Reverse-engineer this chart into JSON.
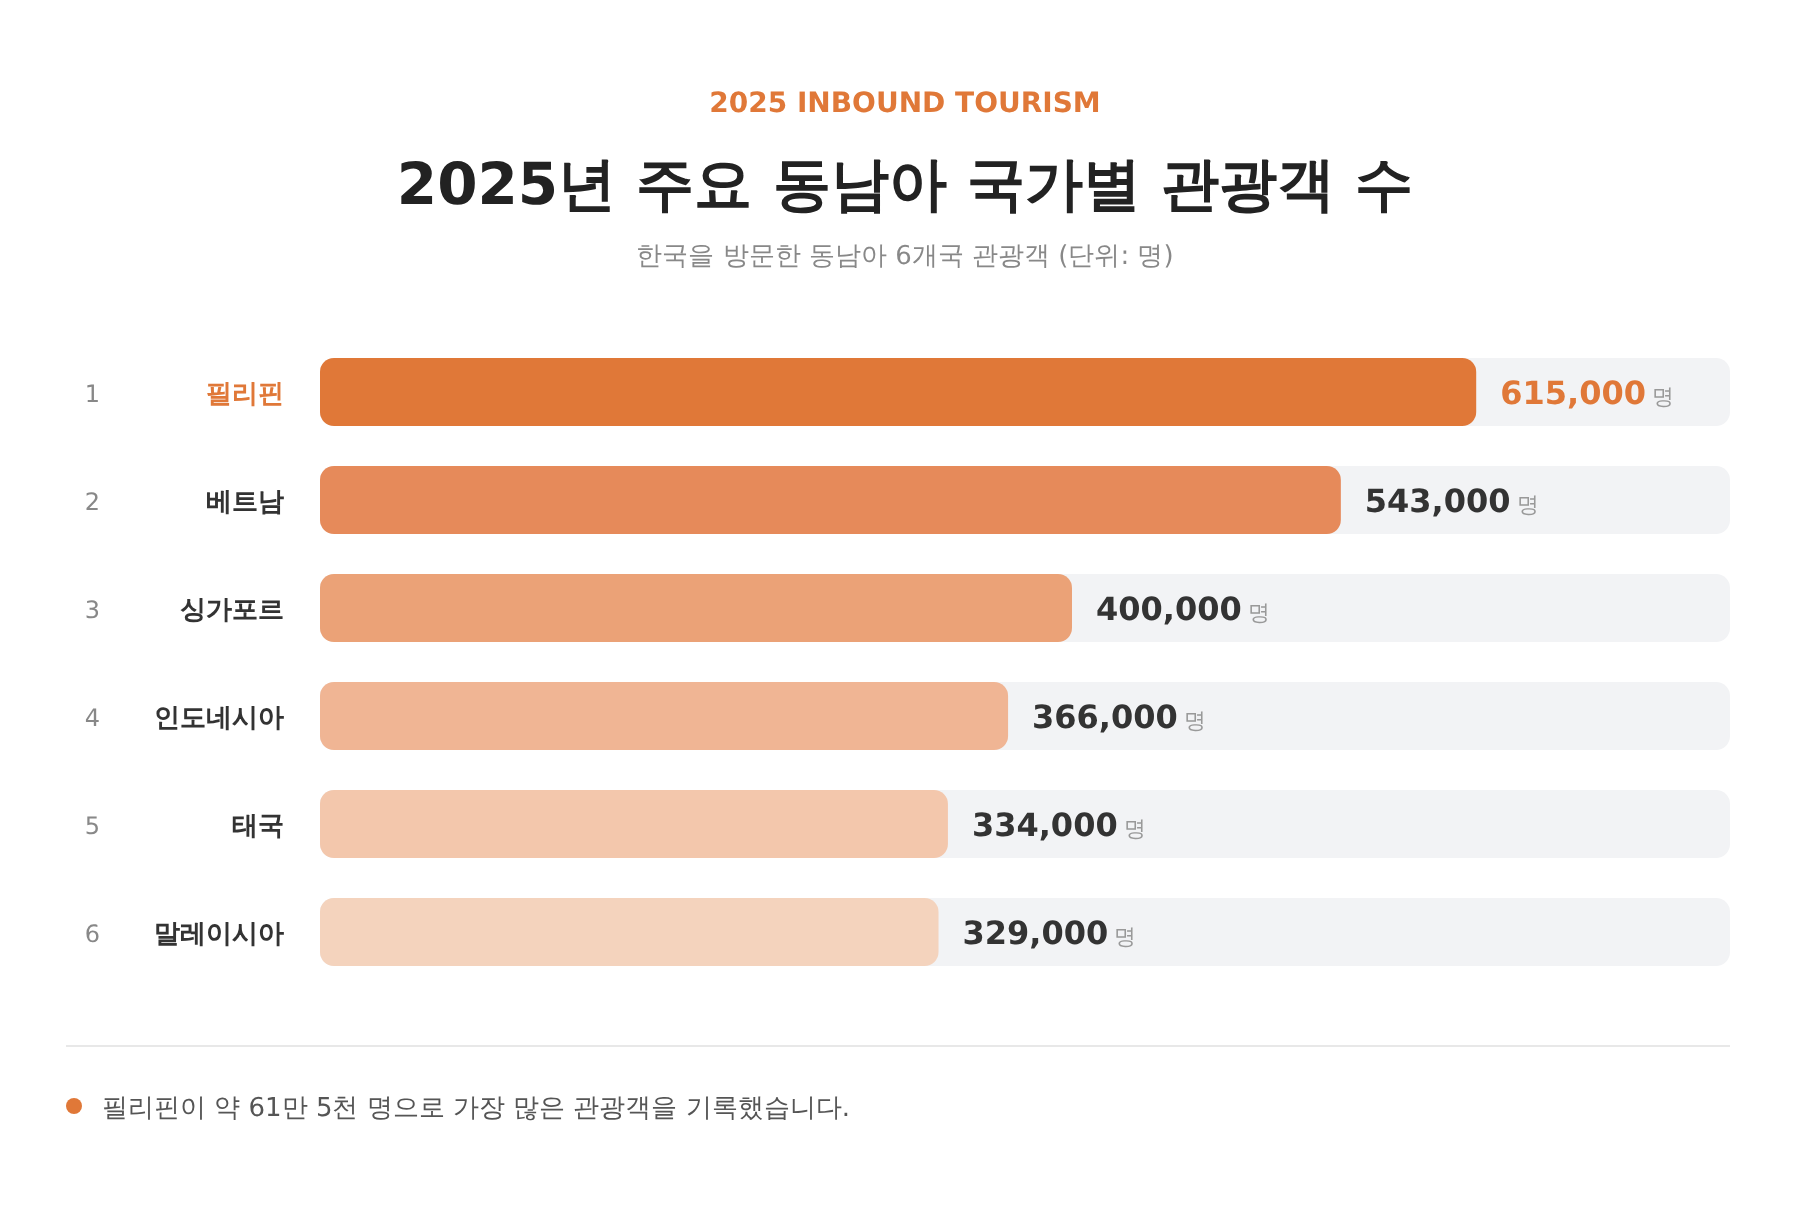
{
  "chart_data": {
    "type": "bar",
    "orientation": "horizontal",
    "title": "2025년 주요 동남아 국가별 관광객 수",
    "subtitle": "한국을 방문한 동남아 6개국 관광객 (단위: 명)",
    "categories": [
      "필리핀",
      "베트남",
      "싱가포르",
      "인도네시아",
      "태국",
      "말레이시아"
    ],
    "values": [
      615000,
      543000,
      400000,
      366000,
      334000,
      329000
    ],
    "colors": [
      "#e07838",
      "#e68a5a",
      "#eba277",
      "#f0b594",
      "#f3c7ac",
      "#f4d3bd"
    ],
    "value_labels": [
      "615,000 명",
      "543,000 명",
      "400,000 명",
      "366,000 명",
      "334,000 명",
      "329,000 명"
    ],
    "xlim": [
      0,
      750000
    ],
    "annotations": [
      "2025 INBOUND TOURISM",
      "1",
      "2",
      "3",
      "4",
      "5",
      "6",
      "필리핀이 약 61만 5천 명으로 가장 많은 관광객을 기록했습니다."
    ]
  }
}
